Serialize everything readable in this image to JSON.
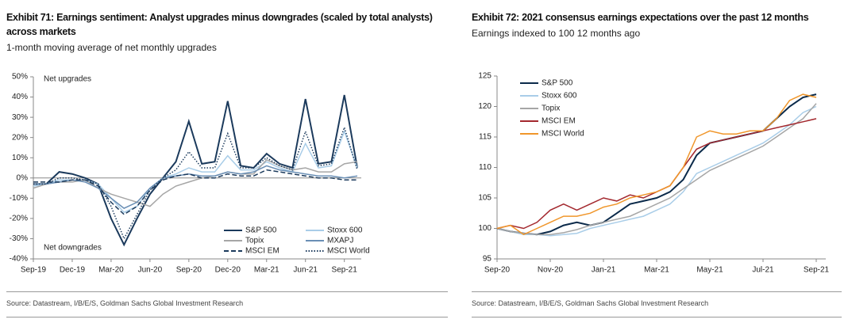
{
  "chart_data": [
    {
      "type": "line",
      "title": "Exhibit 71: Earnings sentiment: Analyst upgrades minus downgrades (scaled by total analysts) across markets",
      "subtitle": "1-month moving average of net monthly upgrades",
      "source": "Source: Datastream, I/B/E/S, Goldman Sachs Global Investment Research",
      "annotations": [
        "Net upgrades",
        "Net downgrades"
      ],
      "categories": [
        "Sep-19",
        null,
        null,
        "Dec-19",
        null,
        null,
        "Mar-20",
        null,
        null,
        "Jun-20",
        null,
        null,
        "Sep-20",
        null,
        null,
        "Dec-20",
        null,
        null,
        "Mar-21",
        null,
        null,
        "Jun-21",
        null,
        null,
        "Sep-21",
        null
      ],
      "ylim": [
        -40,
        50
      ],
      "yticks": [
        {
          "value": -40,
          "label": "-40%"
        },
        {
          "value": -30,
          "label": "-30%"
        },
        {
          "value": -20,
          "label": "-20%"
        },
        {
          "value": -10,
          "label": "-10%"
        },
        {
          "value": 0,
          "label": "0%"
        },
        {
          "value": 10,
          "label": "10%"
        },
        {
          "value": 20,
          "label": "20%"
        },
        {
          "value": 30,
          "label": "30%"
        },
        {
          "value": 40,
          "label": "40%"
        },
        {
          "value": 50,
          "label": "50%"
        }
      ],
      "legend": "lower right",
      "series": [
        {
          "name": "S&P 500",
          "color": "#1b3a5c",
          "style": "solid",
          "values": [
            -3,
            -3,
            3,
            2,
            0,
            -3,
            -20,
            -33,
            -20,
            -8,
            0,
            8,
            28,
            7,
            8,
            38,
            6,
            5,
            12,
            7,
            5,
            39,
            7,
            8,
            41,
            5
          ]
        },
        {
          "name": "Stoxx 600",
          "color": "#a9cde8",
          "style": "solid",
          "values": [
            -4,
            -3,
            -1,
            -1,
            -1,
            -3,
            -10,
            -17,
            -14,
            -5,
            0,
            2,
            5,
            3,
            3,
            11,
            4,
            4,
            8,
            5,
            3,
            17,
            5,
            6,
            23,
            5
          ]
        },
        {
          "name": "Topix",
          "color": "#a6a6a6",
          "style": "solid",
          "values": [
            -5,
            -3,
            -2,
            -2,
            -1,
            -5,
            -8,
            -10,
            -12,
            -14,
            -8,
            -4,
            -2,
            0,
            1,
            3,
            2,
            2,
            9,
            6,
            4,
            5,
            3,
            3,
            7,
            8
          ]
        },
        {
          "name": "MXAPJ",
          "color": "#6a8fb5",
          "style": "solid",
          "values": [
            -3,
            -3,
            -2,
            -1,
            -2,
            -5,
            -10,
            -15,
            -12,
            -5,
            0,
            1,
            2,
            1,
            1,
            3,
            2,
            3,
            6,
            4,
            3,
            2,
            1,
            1,
            0,
            1
          ]
        },
        {
          "name": "MSCI EM",
          "color": "#1b3a5c",
          "style": "dashed",
          "values": [
            -2,
            -2,
            -2,
            -1,
            -1,
            -4,
            -12,
            -18,
            -14,
            -6,
            -1,
            1,
            2,
            0,
            0,
            2,
            1,
            1,
            4,
            3,
            2,
            1,
            0,
            0,
            -1,
            -1
          ]
        },
        {
          "name": "MSCI World",
          "color": "#1b3a5c",
          "style": "dotted",
          "values": [
            -3,
            -3,
            0,
            0,
            -1,
            -3,
            -14,
            -30,
            -18,
            -6,
            0,
            4,
            13,
            5,
            5,
            22,
            5,
            5,
            10,
            6,
            4,
            23,
            6,
            7,
            25,
            4
          ]
        }
      ]
    },
    {
      "type": "line",
      "title": "Exhibit 72: 2021 consensus earnings expectations over the past 12 months",
      "subtitle": "Earnings indexed to 100 12 months ago",
      "source": "Source: Datastream, I/B/E/S, Goldman Sachs Global Investment Research",
      "categories": [
        "Sep-20",
        null,
        null,
        null,
        "Nov-20",
        null,
        null,
        null,
        "Jan-21",
        null,
        null,
        null,
        "Mar-21",
        null,
        null,
        null,
        "May-21",
        null,
        null,
        null,
        "Jul-21",
        null,
        null,
        null,
        "Sep-21"
      ],
      "ylim": [
        95,
        125
      ],
      "yticks": [
        95,
        100,
        105,
        110,
        115,
        120,
        125
      ],
      "legend": "upper left",
      "series": [
        {
          "name": "S&P 500",
          "color": "#0b2a4a",
          "style": "solid",
          "values": [
            100,
            99.5,
            99.2,
            99,
            99.5,
            100.5,
            101,
            100.5,
            101,
            102.5,
            104,
            104.5,
            105,
            106,
            108,
            112,
            114,
            114.5,
            115,
            115.5,
            116,
            118,
            120,
            121.5,
            122
          ]
        },
        {
          "name": "Stoxx 600",
          "color": "#a9cde8",
          "style": "solid",
          "values": [
            100,
            99.5,
            99,
            99,
            98.8,
            99,
            99.2,
            100,
            100.5,
            101,
            101.5,
            102,
            103,
            104,
            106,
            109,
            110,
            111,
            112,
            113,
            114,
            115.5,
            117,
            119,
            120
          ]
        },
        {
          "name": "Topix",
          "color": "#a6a6a6",
          "style": "solid",
          "values": [
            100,
            99.5,
            99.2,
            99,
            99,
            99.3,
            99.8,
            100.5,
            101,
            101.5,
            102,
            103,
            104,
            105,
            106.5,
            108,
            109.5,
            110.5,
            111.5,
            112.5,
            113.5,
            115,
            116.5,
            118,
            120.5
          ]
        },
        {
          "name": "MSCI EM",
          "color": "#a3282e",
          "style": "solid",
          "values": [
            100,
            100.5,
            100,
            101,
            103,
            104,
            103,
            104,
            105,
            104.5,
            105.5,
            105,
            106,
            107,
            110,
            113,
            114,
            114.5,
            115,
            115.5,
            116,
            116.5,
            117,
            117.5,
            118
          ]
        },
        {
          "name": "MSCI World",
          "color": "#f0962a",
          "style": "solid",
          "values": [
            100,
            100.5,
            99,
            100,
            101,
            102,
            102,
            102.5,
            103.5,
            104,
            105,
            105.5,
            106,
            107,
            110,
            115,
            116,
            115.5,
            115.5,
            116,
            116,
            118,
            121,
            122,
            121.5
          ]
        }
      ]
    }
  ]
}
